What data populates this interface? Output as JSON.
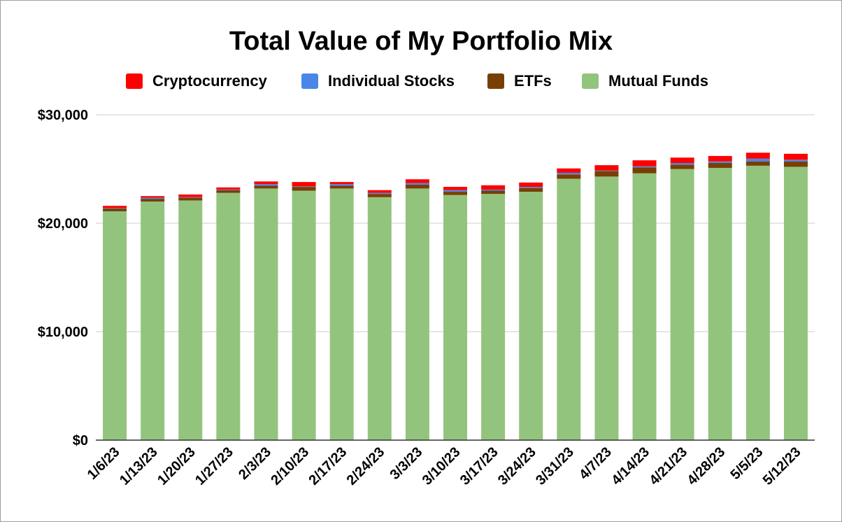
{
  "chart_data": {
    "type": "bar",
    "stacked": true,
    "title": "Total Value of My Portfolio Mix",
    "xlabel": "",
    "ylabel": "",
    "ylim": [
      0,
      30000
    ],
    "yticks": [
      "$0",
      "$10,000",
      "$20,000",
      "$30,000"
    ],
    "ytick_values": [
      0,
      10000,
      20000,
      30000
    ],
    "grid": true,
    "legend_position": "top",
    "categories": [
      "1/6/23",
      "1/13/23",
      "1/20/23",
      "1/27/23",
      "2/3/23",
      "2/10/23",
      "2/17/23",
      "2/24/23",
      "3/3/23",
      "3/10/23",
      "3/17/23",
      "3/24/23",
      "3/31/23",
      "4/7/23",
      "4/14/23",
      "4/21/23",
      "4/28/23",
      "5/5/23",
      "5/12/23"
    ],
    "legend": [
      "Cryptocurrency",
      "Individual Stocks",
      "ETFs",
      "Mutual Funds"
    ],
    "series": [
      {
        "name": "Mutual Funds",
        "color": "#93c47d",
        "values": [
          21100,
          22000,
          22100,
          22800,
          23200,
          23000,
          23200,
          22400,
          23200,
          22600,
          22700,
          22900,
          24100,
          24300,
          24600,
          25000,
          25100,
          25300,
          25200
        ]
      },
      {
        "name": "ETFs",
        "color": "#783f04",
        "values": [
          250,
          250,
          250,
          250,
          250,
          350,
          250,
          300,
          350,
          300,
          300,
          350,
          400,
          500,
          550,
          400,
          450,
          400,
          500
        ]
      },
      {
        "name": "Individual Stocks",
        "color": "#4a86e8",
        "values": [
          50,
          100,
          50,
          50,
          150,
          50,
          150,
          100,
          150,
          150,
          100,
          100,
          150,
          50,
          100,
          150,
          150,
          250,
          150
        ]
      },
      {
        "name": "Cryptocurrency",
        "color": "#ff0000",
        "values": [
          200,
          150,
          250,
          200,
          250,
          400,
          200,
          250,
          350,
          300,
          400,
          400,
          400,
          500,
          550,
          500,
          500,
          550,
          550
        ]
      }
    ]
  }
}
